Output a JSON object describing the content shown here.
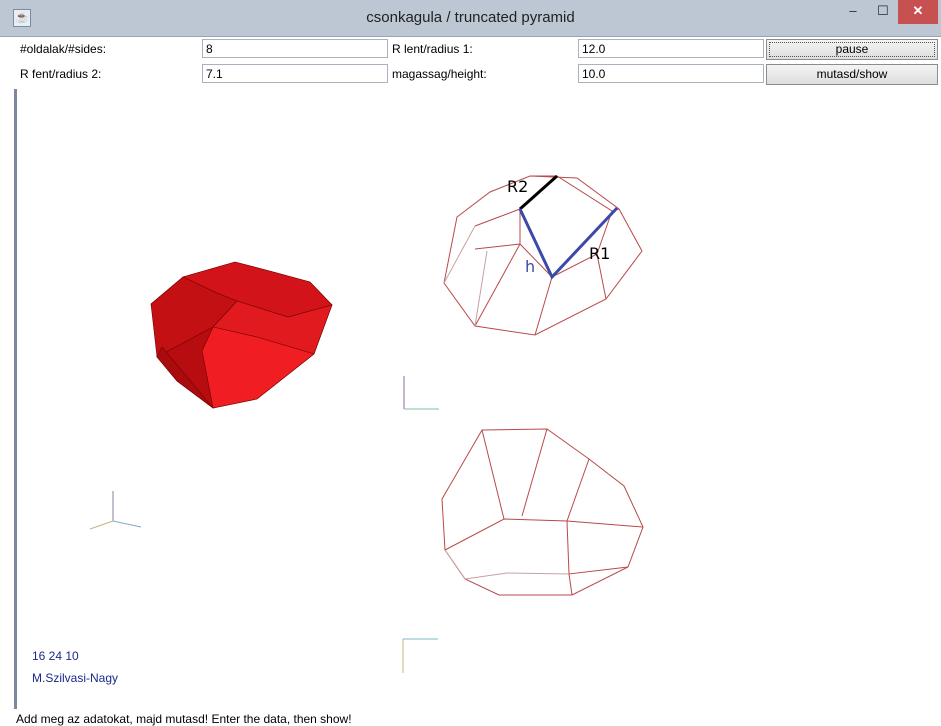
{
  "window": {
    "title": "csonkagula / truncated pyramid"
  },
  "form": {
    "sides_label": "#oldalak/#sides:",
    "sides_value": "8",
    "radius1_label": "R lent/radius 1:",
    "radius1_value": "12.0",
    "radius2_label": "R fent/radius 2:",
    "radius2_value": "7.1",
    "height_label": "magassag/height:",
    "height_value": "10.0",
    "pause_label": "pause",
    "show_label": "mutasd/show"
  },
  "canvas": {
    "r2_label": "R2",
    "r1_label": "R1",
    "h_label": "h",
    "numbers": "16 24 10",
    "author": "M.Szilvasi-Nagy"
  },
  "status": {
    "text": "Add meg az adatokat, majd mutasd! Enter the data, then show!"
  },
  "colors": {
    "solid": "#e0161b",
    "wire": "#b84a4a",
    "annotation": "#3b4aa8"
  }
}
